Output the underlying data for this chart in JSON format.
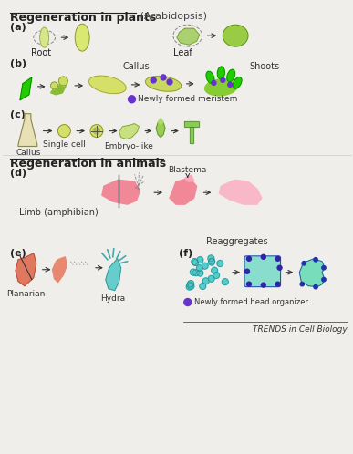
{
  "title_plants": "Regeneration in plants",
  "title_plants_suffix": " (Arabidopsis)",
  "title_animals": "Regeneration in animals",
  "label_a": "(a)",
  "label_b": "(b)",
  "label_c": "(c)",
  "label_d": "(d)",
  "label_e": "(e)",
  "label_f": "(f)",
  "background_color": "#f0eeea",
  "green_bright": "#22cc00",
  "green_light": "#ccdd88",
  "green_medium": "#88bb44",
  "yellow_light": "#e8e8a0",
  "pink_color": "#f08898",
  "teal_color": "#66cccc",
  "salmon_color": "#e87060",
  "purple_dot": "#6633cc",
  "footer": "TRENDS in Cell Biology"
}
